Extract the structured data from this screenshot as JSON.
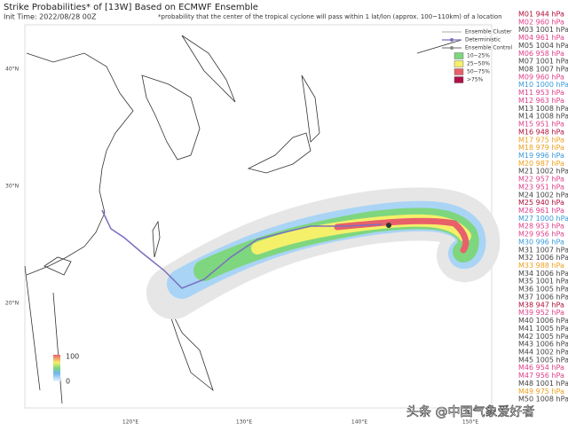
{
  "header": {
    "title": "Strike Probabilities* of [13W] Based on ECMWF Ensemble",
    "init_time": "Init Time: 2022/08/28 00Z",
    "note": "*probability that the center of the tropical cyclone will pass within 1 lat/lon (approx. 100~110km) of a location"
  },
  "legend": {
    "lines": [
      {
        "label": "Ensemble Cluster",
        "color": "#bbbbbb"
      },
      {
        "label": "Deterministic",
        "color": "#7a6fc0"
      },
      {
        "label": "Ensemble Control",
        "color": "#888888"
      }
    ],
    "boxes": [
      {
        "label": "10~25%",
        "color": "#7ed67e"
      },
      {
        "label": "25~50%",
        "color": "#f4f06a"
      },
      {
        "label": "50~75%",
        "color": "#e8606a"
      },
      {
        "label": ">75%",
        "color": "#b0104a"
      }
    ]
  },
  "members": [
    {
      "label": "M01 944 hPa",
      "color": "#b0103a"
    },
    {
      "label": "M02 960 hPa",
      "color": "#e0408a"
    },
    {
      "label": "M03 1001 hPa",
      "color": "#444444"
    },
    {
      "label": "M04 961 hPa",
      "color": "#e0408a"
    },
    {
      "label": "M05 1004 hPa",
      "color": "#444444"
    },
    {
      "label": "M06 958 hPa",
      "color": "#e0408a"
    },
    {
      "label": "M07 1001 hPa",
      "color": "#444444"
    },
    {
      "label": "M08 1007 hPa",
      "color": "#444444"
    },
    {
      "label": "M09 960 hPa",
      "color": "#e0408a"
    },
    {
      "label": "M10 1000 hPa",
      "color": "#3a9ad9"
    },
    {
      "label": "M11 953 hPa",
      "color": "#e0408a"
    },
    {
      "label": "M12 963 hPa",
      "color": "#e0408a"
    },
    {
      "label": "M13 1008 hPa",
      "color": "#444444"
    },
    {
      "label": "M14 1008 hPa",
      "color": "#444444"
    },
    {
      "label": "M15 951 hPa",
      "color": "#e0408a"
    },
    {
      "label": "M16 948 hPa",
      "color": "#b0103a"
    },
    {
      "label": "M17 975 hPa",
      "color": "#f0a020"
    },
    {
      "label": "M18 979 hPa",
      "color": "#f0a020"
    },
    {
      "label": "M19 996 hPa",
      "color": "#3a9ad9"
    },
    {
      "label": "M20 987 hPa",
      "color": "#f0a020"
    },
    {
      "label": "M21 1002 hPa",
      "color": "#444444"
    },
    {
      "label": "M22 957 hPa",
      "color": "#e0408a"
    },
    {
      "label": "M23 951 hPa",
      "color": "#e0408a"
    },
    {
      "label": "M24 1002 hPa",
      "color": "#444444"
    },
    {
      "label": "M25 940 hPa",
      "color": "#b0103a"
    },
    {
      "label": "M26 961 hPa",
      "color": "#e0408a"
    },
    {
      "label": "M27 1000 hPa",
      "color": "#3a9ad9"
    },
    {
      "label": "M28 953 hPa",
      "color": "#e0408a"
    },
    {
      "label": "M29 956 hPa",
      "color": "#e0408a"
    },
    {
      "label": "M30 996 hPa",
      "color": "#3a9ad9"
    },
    {
      "label": "M31 1007 hPa",
      "color": "#444444"
    },
    {
      "label": "M32 1006 hPa",
      "color": "#444444"
    },
    {
      "label": "M33 988 hPa",
      "color": "#f0a020"
    },
    {
      "label": "M34 1006 hPa",
      "color": "#444444"
    },
    {
      "label": "M35 1001 hPa",
      "color": "#444444"
    },
    {
      "label": "M36 1005 hPa",
      "color": "#444444"
    },
    {
      "label": "M37 1006 hPa",
      "color": "#444444"
    },
    {
      "label": "M38 947 hPa",
      "color": "#b0103a"
    },
    {
      "label": "M39 952 hPa",
      "color": "#e0408a"
    },
    {
      "label": "M40 1006 hPa",
      "color": "#444444"
    },
    {
      "label": "M41 1005 hPa",
      "color": "#444444"
    },
    {
      "label": "M42 1005 hPa",
      "color": "#444444"
    },
    {
      "label": "M43 1006 hPa",
      "color": "#444444"
    },
    {
      "label": "M44 1002 hPa",
      "color": "#444444"
    },
    {
      "label": "M45 1005 hPa",
      "color": "#444444"
    },
    {
      "label": "M46 954 hPa",
      "color": "#e0408a"
    },
    {
      "label": "M47 956 hPa",
      "color": "#e0408a"
    },
    {
      "label": "M48 1001 hPa",
      "color": "#444444"
    },
    {
      "label": "M49 975 hPa",
      "color": "#f0a020"
    },
    {
      "label": "M50 1008 hPa",
      "color": "#444444"
    }
  ],
  "map": {
    "lat_labels": [
      "40°N",
      "30°N",
      "20°N"
    ],
    "lon_labels": [
      "120°E",
      "130°E",
      "140°E",
      "150°E"
    ]
  },
  "colorbar": {
    "max": "100",
    "min": "0"
  },
  "watermark": "头条 @中国气象爱好者"
}
